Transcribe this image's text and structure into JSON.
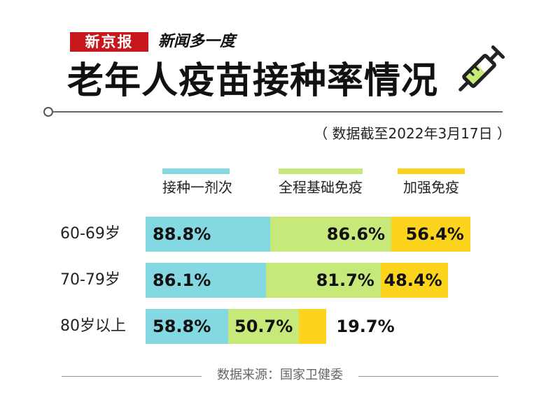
{
  "header": {
    "brand": "新京报",
    "column": "新闻多一度",
    "title": "老年人疫苗接种率情况",
    "date_note": "（ 数据截至2022年3月17日 ）"
  },
  "icons": {
    "syringe": "syringe-icon"
  },
  "footer": {
    "source": "数据来源：国家卫健委"
  },
  "colors": {
    "first_dose": "#84d8e2",
    "full_course": "#c6e97a",
    "booster": "#fcd41e",
    "brand_red": "#c8161d"
  },
  "chart_data": {
    "type": "bar",
    "categories": [
      "60-69岁",
      "70-79岁",
      "80岁以上"
    ],
    "series": [
      {
        "name": "接种一剂次",
        "values": [
          88.8,
          86.1,
          58.8
        ],
        "labels": [
          "88.8%",
          "86.1%",
          "58.8%"
        ]
      },
      {
        "name": "全程基础免疫",
        "values": [
          86.6,
          81.7,
          50.7
        ],
        "labels": [
          "86.6%",
          "81.7%",
          "50.7%"
        ]
      },
      {
        "name": "加强免疫",
        "values": [
          56.4,
          48.4,
          19.7
        ],
        "labels": [
          "56.4%",
          "48.4%",
          "19.7%"
        ]
      }
    ],
    "unit": "%",
    "legend": "top",
    "grid": false
  }
}
